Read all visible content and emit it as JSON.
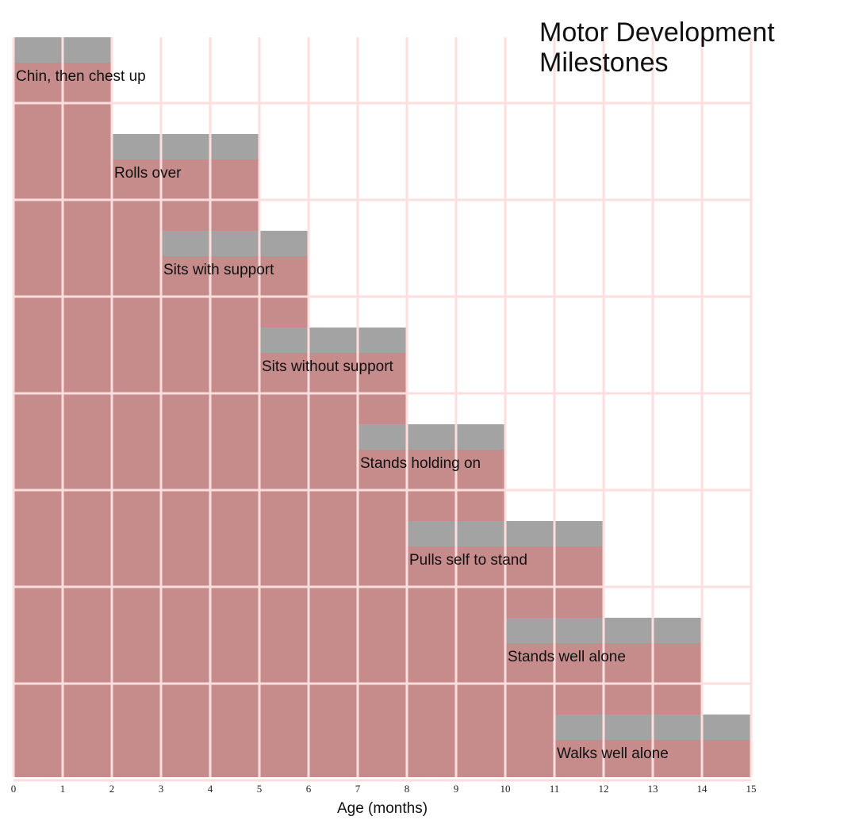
{
  "chart_data": {
    "type": "milestone",
    "title": "Motor Development Milestones",
    "x_label": "Age (months)",
    "categories": [
      "Chin, then chest up",
      "Rolls over",
      "Sits with support",
      "Sits without support",
      "Stands holding on",
      "Pulls self to stand",
      "Stands well alone",
      "Walks well alone"
    ],
    "start": [
      0,
      2,
      3,
      5,
      7,
      8,
      10,
      11
    ],
    "end": [
      2,
      5,
      6,
      8,
      10,
      12,
      14,
      15
    ],
    "color": "#c68b8b",
    "cap_color": "#a3a3a3",
    "xlim": [
      0,
      15
    ],
    "xticks": [
      0,
      1,
      2,
      3,
      4,
      5,
      6,
      7,
      8,
      9,
      10,
      11,
      12,
      13,
      14,
      15
    ],
    "grid": true
  }
}
